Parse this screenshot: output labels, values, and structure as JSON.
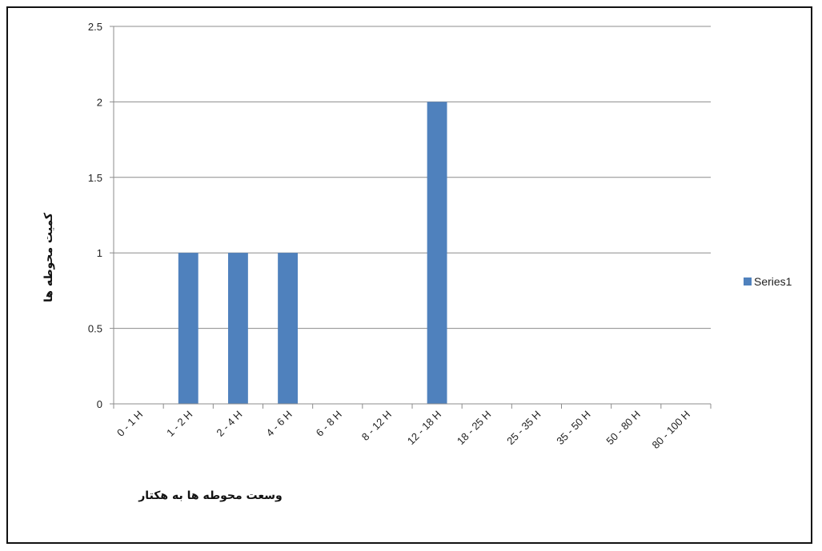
{
  "chart_data": {
    "type": "bar",
    "categories": [
      "0 - 1 H",
      "1 - 2 H",
      "2 - 4 H",
      "4 - 6 H",
      "6 - 8 H",
      "8 - 12 H",
      "12 - 18 H",
      "18 - 25 H",
      "25 - 35 H",
      "35 - 50 H",
      "50 - 80 H",
      "80 - 100 H"
    ],
    "series": [
      {
        "name": "Series1",
        "values": [
          0,
          1,
          1,
          1,
          0,
          0,
          2,
          0,
          0,
          0,
          0,
          0
        ]
      }
    ],
    "xlabel": "وسعت محوطه ها به هکتار",
    "ylabel": "کمیت محوطه ها",
    "ylim": [
      0,
      2.5
    ],
    "yticks": [
      "0",
      "0.5",
      "1",
      "1.5",
      "2",
      "2.5"
    ],
    "grid": true,
    "legend_position": "right",
    "bar_color": "#4f81bd"
  }
}
